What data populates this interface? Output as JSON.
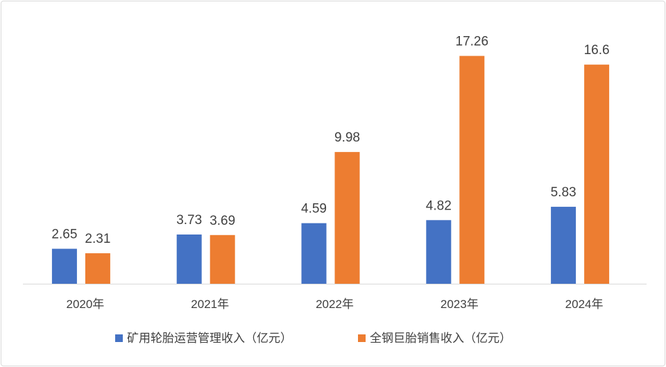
{
  "chart_data": {
    "type": "bar",
    "categories": [
      "2020年",
      "2021年",
      "2022年",
      "2023年",
      "2024年"
    ],
    "series": [
      {
        "name": "矿用轮胎运营管理收入（亿元）",
        "values": [
          2.65,
          3.73,
          4.59,
          4.82,
          5.83
        ],
        "color": "#4472c4"
      },
      {
        "name": "全钢巨胎销售收入（亿元）",
        "values": [
          2.31,
          3.69,
          9.98,
          17.26,
          16.6
        ],
        "color": "#ed7d31"
      }
    ],
    "value_labels": [
      [
        "2.65",
        "3.73",
        "4.59",
        "4.82",
        "5.83"
      ],
      [
        "2.31",
        "3.69",
        "9.98",
        "17.26",
        "16.6"
      ]
    ],
    "ylim": [
      0,
      18.5
    ],
    "legend_position": "bottom",
    "grid": false,
    "axis_color": "#d9d9d9"
  }
}
